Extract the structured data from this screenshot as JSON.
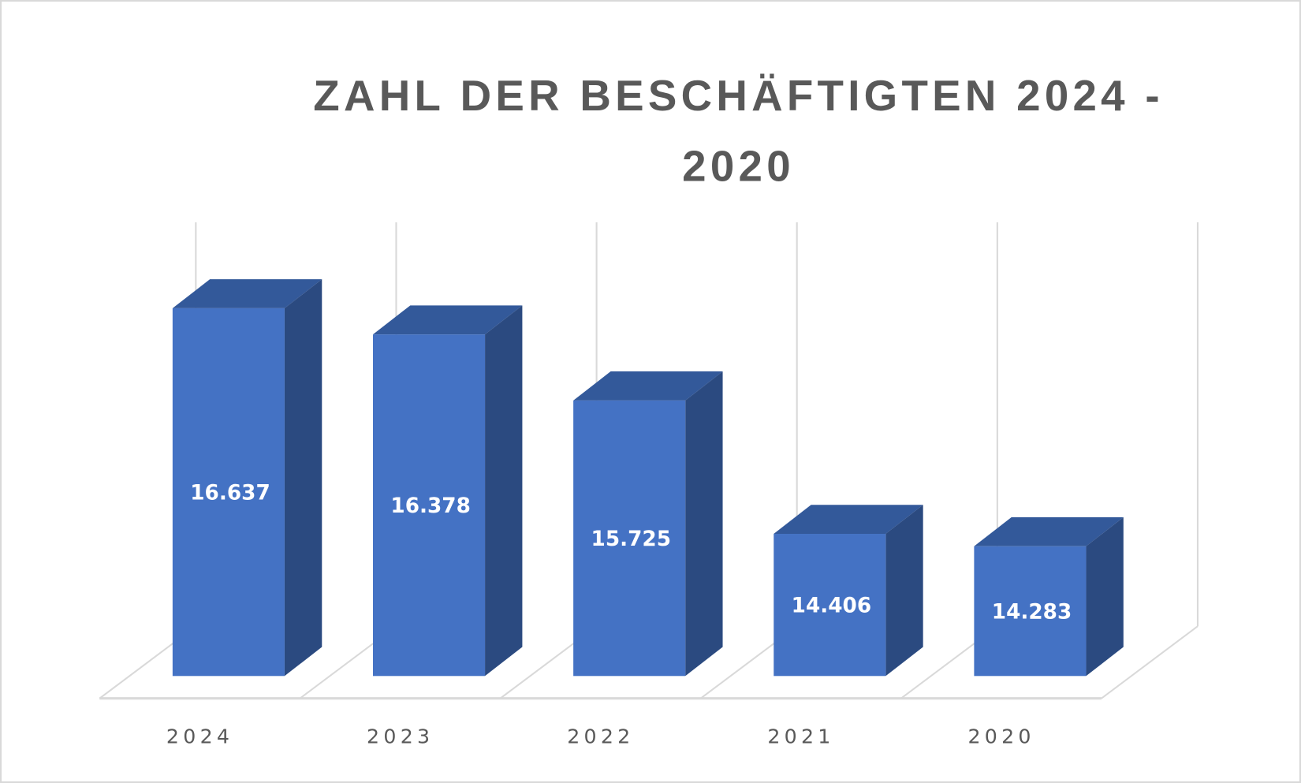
{
  "chart_data": {
    "type": "bar",
    "style": "3d-column",
    "title": "ZAHL DER BESCHÄFTIGTEN 2024 - 2020",
    "title_lines": [
      "ZAHL DER BESCHÄFTIGTEN 2024 -",
      "2020"
    ],
    "categories": [
      "2024",
      "2023",
      "2022",
      "2021",
      "2020"
    ],
    "values": [
      16637,
      16378,
      15725,
      14406,
      14283
    ],
    "data_labels": [
      "16.637",
      "16.378",
      "15.725",
      "14.406",
      "14.283"
    ],
    "xlabel": "",
    "ylabel": "",
    "ylim": [
      13000,
      17200
    ],
    "grid": false,
    "legend": "none",
    "colors": {
      "front": "#4472C4",
      "side": "#2B4A80",
      "top": "#33599A",
      "wall": "#D9D9D9",
      "text": "#595959"
    }
  }
}
